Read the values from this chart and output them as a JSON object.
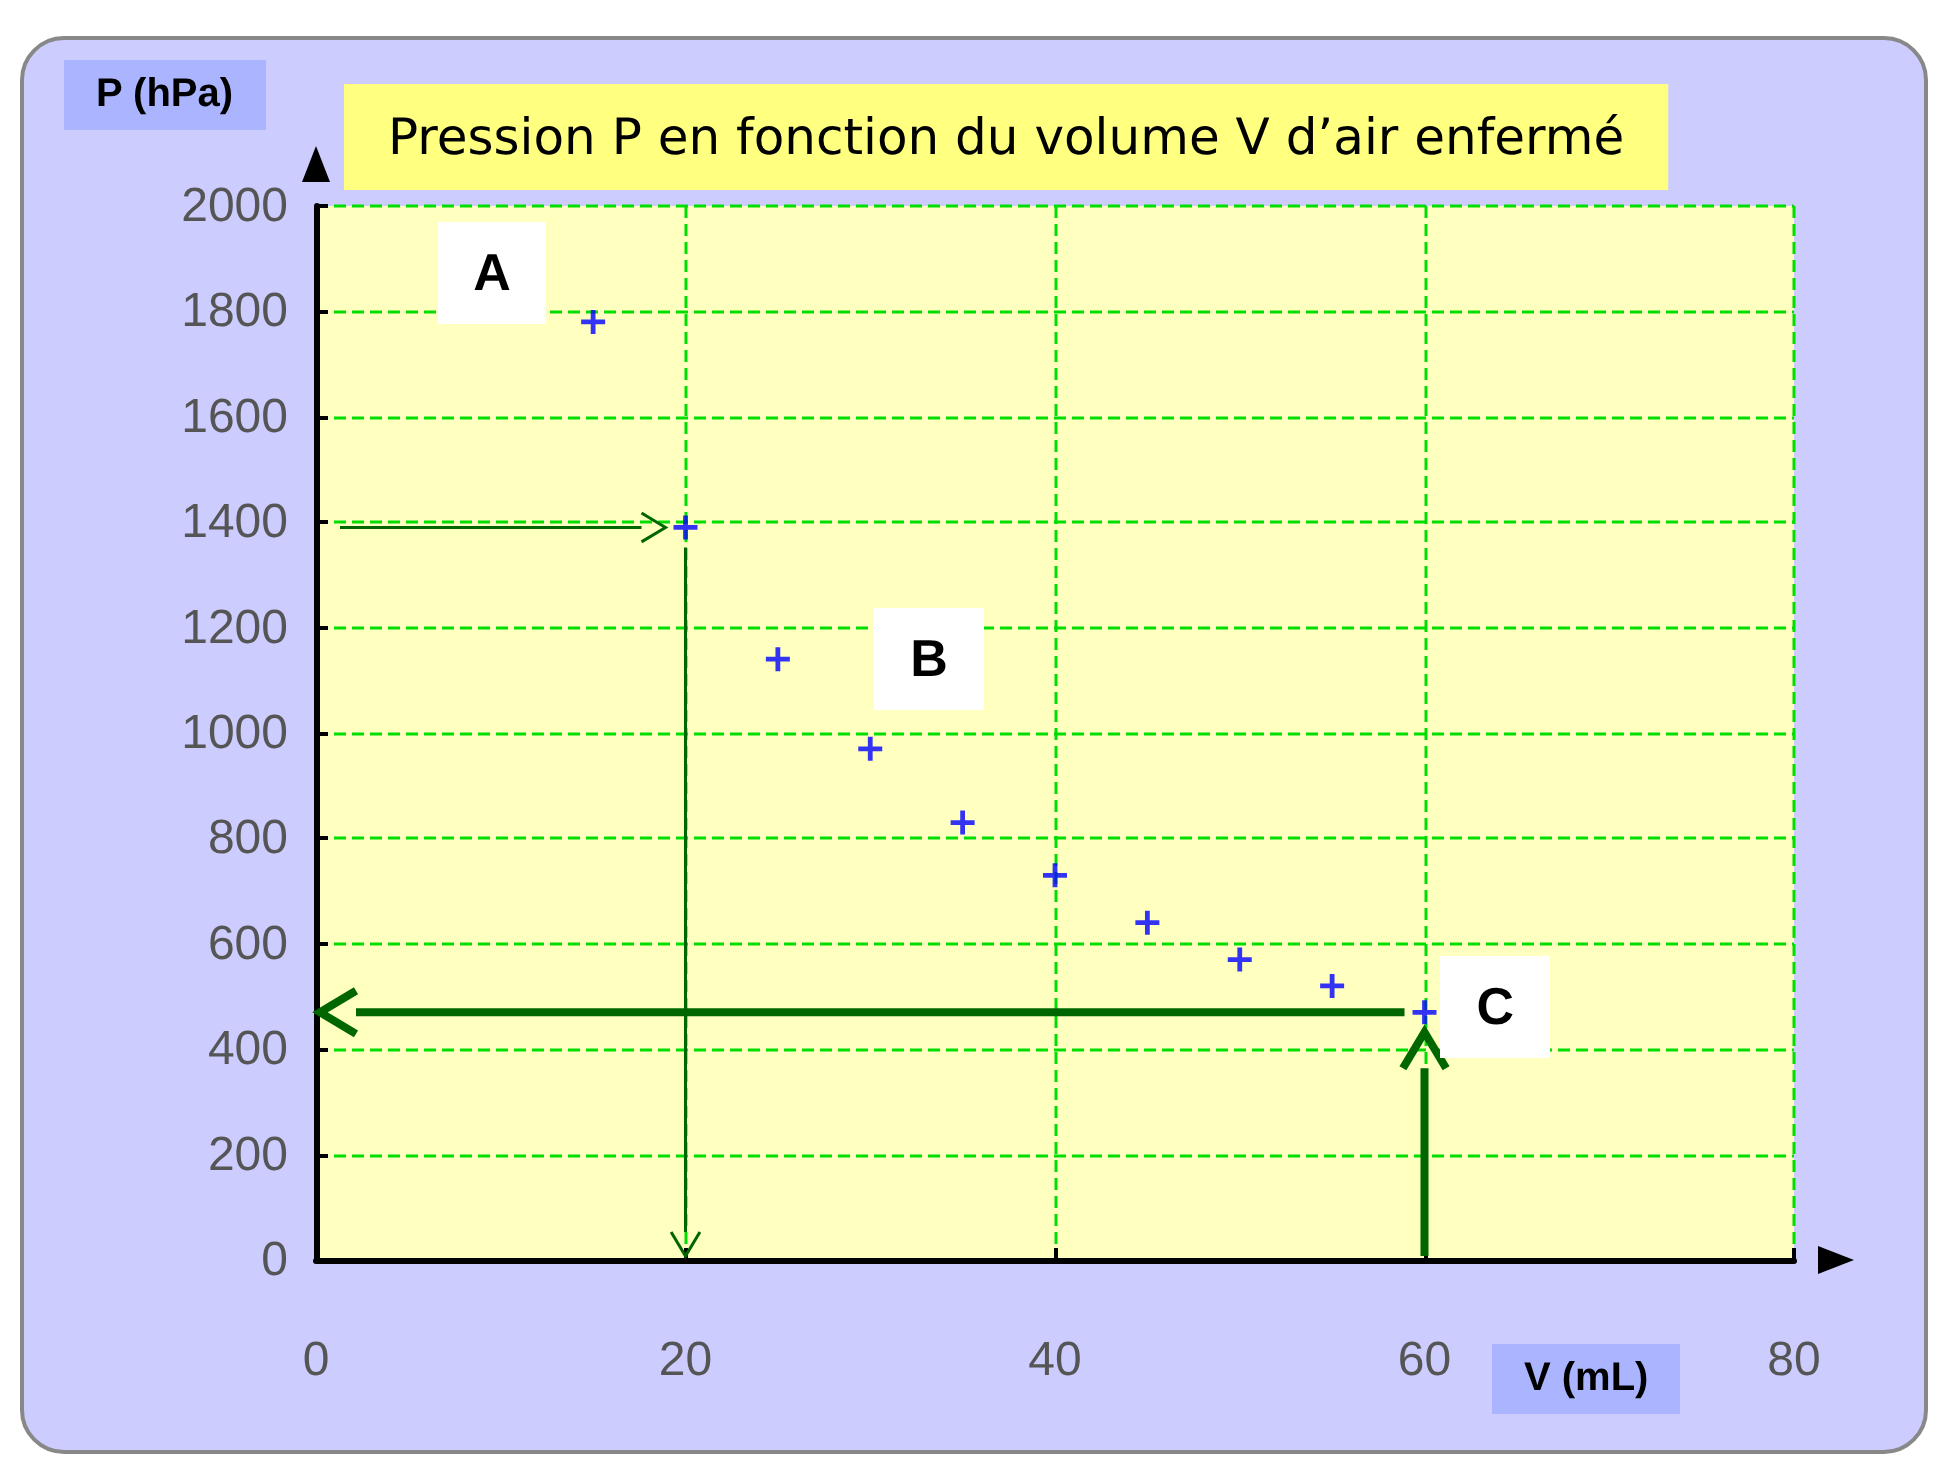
{
  "chart_data": {
    "type": "scatter",
    "title": "Pression P en fonction du volume V d’air enfermé",
    "xlabel": "V (mL)",
    "ylabel": "P (hPa)",
    "x": [
      15,
      20,
      25,
      30,
      35,
      40,
      45,
      50,
      55,
      60
    ],
    "series": [
      {
        "color": "#0000ff",
        "values": [
          1780,
          1390,
          1140,
          970,
          830,
          730,
          640,
          570,
          520,
          470
        ]
      }
    ],
    "xlim": [
      0,
      80
    ],
    "xticks": [
      0,
      20,
      40,
      60,
      80
    ],
    "ylim": [
      0,
      2000
    ],
    "yticks": [
      0,
      200,
      400,
      600,
      800,
      1000,
      1200,
      1400,
      1600,
      1800,
      2000
    ],
    "grid": true,
    "marker": "cross",
    "ref_lines": [
      {
        "axis": "y",
        "value": 1390,
        "color": "#006600"
      },
      {
        "axis": "x",
        "value": 20,
        "color": "#006600"
      },
      {
        "axis": "y",
        "value": 470,
        "color": "#006600"
      },
      {
        "axis": "x",
        "value": 60,
        "color": "#006600"
      }
    ],
    "annotations": [
      {
        "text": "A",
        "x": 15,
        "y": 1780
      },
      {
        "text": "B",
        "x": 30,
        "y": 970
      },
      {
        "text": "C",
        "x": 60,
        "y": 470
      }
    ]
  }
}
